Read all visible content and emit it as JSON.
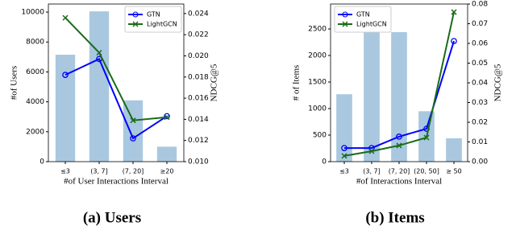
{
  "chart_data": [
    {
      "type": "bar",
      "caption": "(a) Users",
      "xlabel": "#of User Interactions Interval",
      "ylabel": "#of Users",
      "y2label": "NDCG@5",
      "categories": [
        "≤3",
        "(3, 7]",
        "(7, 20]",
        "≥20"
      ],
      "series": [
        {
          "name": "# of Users",
          "color": "#a9c8e0",
          "values": [
            7150,
            10050,
            4100,
            1000
          ]
        },
        {
          "name": "GTN",
          "color": "#0000ff",
          "marker": "circle",
          "axis": "y2",
          "values": [
            0.0182,
            0.0197,
            0.0122,
            0.0143
          ]
        },
        {
          "name": "LightGCN",
          "color": "#1a6b1a",
          "marker": "x",
          "axis": "y2",
          "values": [
            0.0236,
            0.0203,
            0.0139,
            0.0142
          ]
        }
      ],
      "ylim": [
        0,
        10540
      ],
      "yticks": [
        0,
        2000,
        4000,
        6000,
        8000,
        10000
      ],
      "y2lim": [
        0.01,
        0.0249
      ],
      "y2ticks": [
        {
          "value": 0.01,
          "label": "0.010"
        },
        {
          "value": 0.012,
          "label": "0.012"
        },
        {
          "value": 0.014,
          "label": "0.014"
        },
        {
          "value": 0.016,
          "label": "0.016"
        },
        {
          "value": 0.018,
          "label": "0.018"
        },
        {
          "value": 0.02,
          "label": "0.020"
        },
        {
          "value": 0.022,
          "label": "0.022"
        },
        {
          "value": 0.024,
          "label": "0.024"
        }
      ],
      "legend": "upper right"
    },
    {
      "type": "bar",
      "caption": "(b) Items",
      "xlabel": "#of Interactions Interval",
      "ylabel": "# of Items",
      "y2label": "NDCG@5",
      "categories": [
        "≤3",
        "(3, 7]",
        "(7, 20]",
        "(20, 50]",
        "≥ 50"
      ],
      "series": [
        {
          "name": "# of Items",
          "color": "#a9c8e0",
          "values": [
            1270,
            2480,
            2440,
            950,
            440
          ]
        },
        {
          "name": "GTN",
          "color": "#0000ff",
          "marker": "circle",
          "axis": "y2",
          "values": [
            0.0069,
            0.0069,
            0.0127,
            0.0167,
            0.0612
          ]
        },
        {
          "name": "LightGCN",
          "color": "#1a6b1a",
          "marker": "x",
          "axis": "y2",
          "values": [
            0.0029,
            0.0053,
            0.0082,
            0.0122,
            0.0759
          ]
        }
      ],
      "ylim": [
        0,
        2970
      ],
      "yticks": [
        0,
        500,
        1000,
        1500,
        2000,
        2500
      ],
      "y2lim": [
        0,
        0.08
      ],
      "y2ticks": [
        {
          "value": 0,
          "label": "0.00"
        },
        {
          "value": 0.01,
          "label": "0.01"
        },
        {
          "value": 0.02,
          "label": "0.02"
        },
        {
          "value": 0.03,
          "label": "0.03"
        },
        {
          "value": 0.04,
          "label": "0.04"
        },
        {
          "value": 0.05,
          "label": "0.05"
        },
        {
          "value": 0.06,
          "label": "0.06"
        },
        {
          "value": 0.07,
          "label": "0.07"
        },
        {
          "value": 0.08,
          "label": "0.08"
        }
      ],
      "legend": "upper left"
    }
  ]
}
